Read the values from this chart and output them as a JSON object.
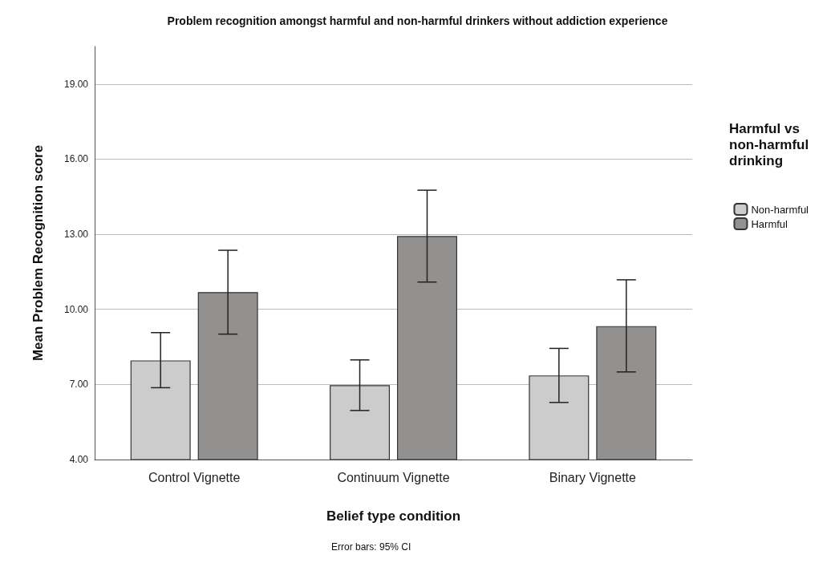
{
  "chart_data": {
    "type": "bar",
    "title": "Problem recognition amongst harmful and non-harmful drinkers without addiction experience",
    "xlabel": "Belief type condition",
    "ylabel": "Mean Problem Recognition score",
    "legend_title": "Harmful vs non-harmful drinking",
    "annotations": [
      "Error bars: 95% CI"
    ],
    "categories": [
      "Control Vignette",
      "Continuum Vignette",
      "Binary Vignette"
    ],
    "series": [
      {
        "name": "Non-harmful",
        "color": "#cccccc",
        "values": [
          7.96,
          6.97,
          7.36
        ],
        "errors": [
          [
            6.87,
            9.07
          ],
          [
            5.96,
            7.98
          ],
          [
            6.28,
            8.44
          ]
        ]
      },
      {
        "name": "Harmful",
        "color": "#939090",
        "values": [
          10.69,
          12.93,
          9.33
        ],
        "errors": [
          [
            9.01,
            12.36
          ],
          [
            11.09,
            14.76
          ],
          [
            7.5,
            11.18
          ]
        ]
      }
    ],
    "ylim": [
      4,
      20.5
    ],
    "yticks": [
      {
        "value": 4,
        "label": "4.00"
      },
      {
        "value": 7,
        "label": "7.00"
      },
      {
        "value": 10,
        "label": "10.00"
      },
      {
        "value": 13,
        "label": "13.00"
      },
      {
        "value": 16,
        "label": "16.00"
      },
      {
        "value": 19,
        "label": "19.00"
      }
    ],
    "grid": "y",
    "legend": "right"
  }
}
